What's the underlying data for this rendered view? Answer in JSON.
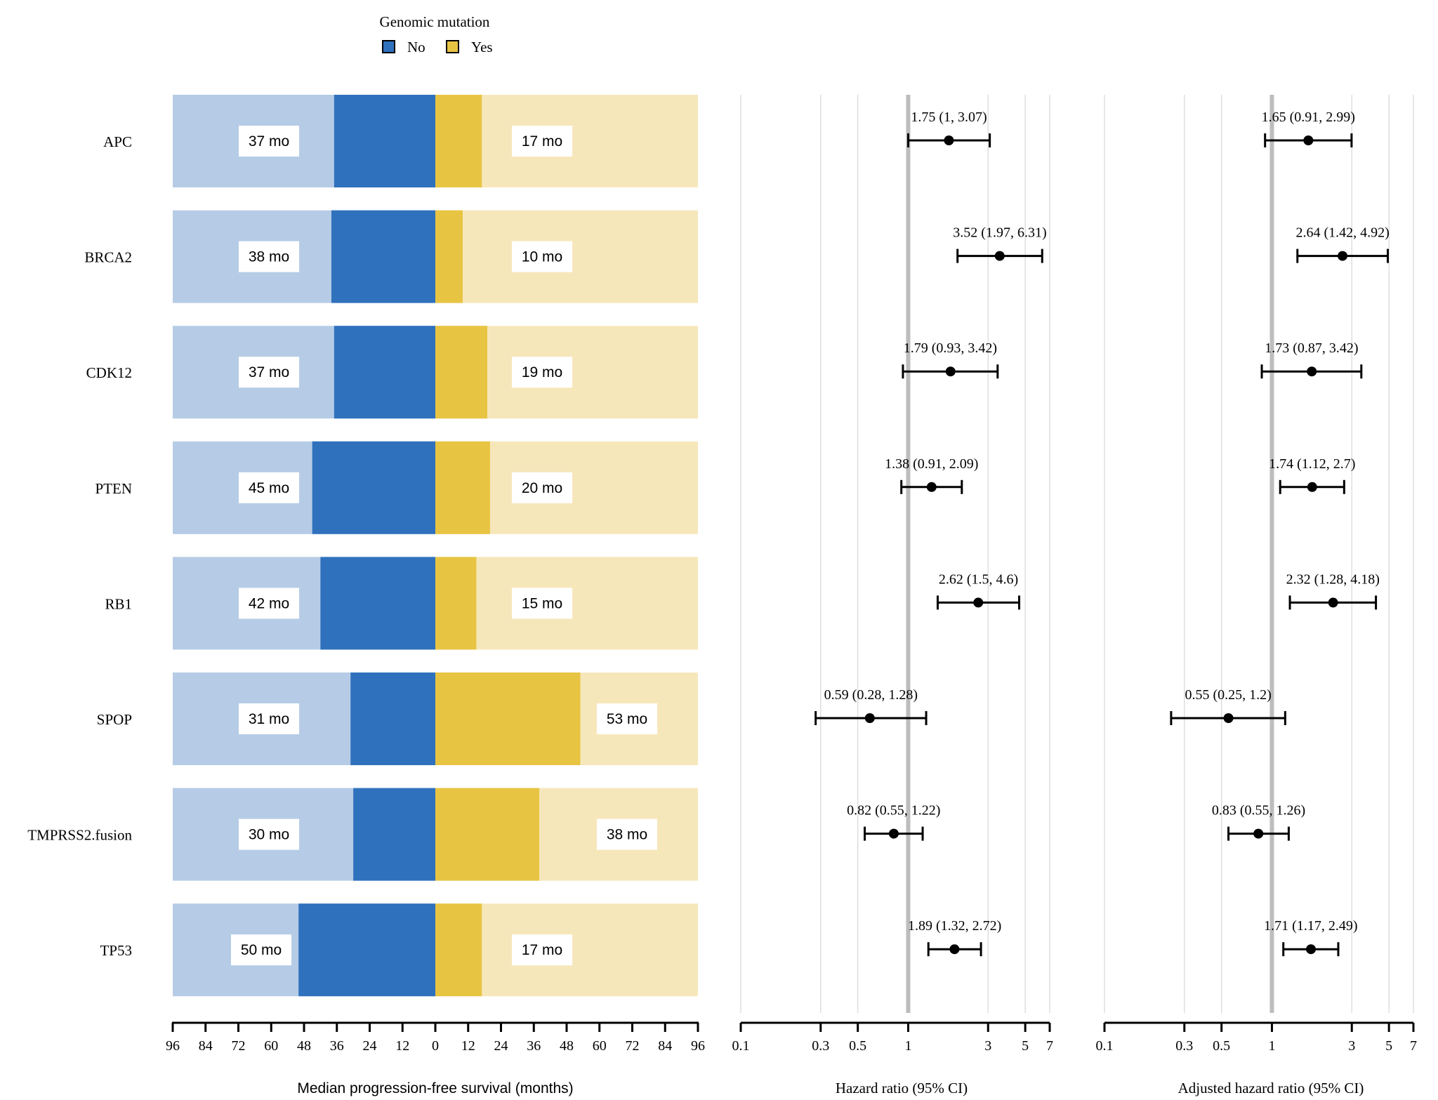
{
  "legend": {
    "title": "Genomic mutation",
    "items": [
      {
        "label": "No",
        "color": "#3071bd"
      },
      {
        "label": "Yes",
        "color": "#e8c443"
      }
    ]
  },
  "colors": {
    "no_dark": "#3071bd",
    "no_light": "#b6cce6",
    "yes_dark": "#e8c443",
    "yes_light": "#f6e7bb",
    "reference_line": "#bdbdbd",
    "grid": "#dadada",
    "point": "#000000"
  },
  "chart_data": [
    {
      "type": "bar",
      "title": "",
      "xlabel": "Median progression-free survival (months)",
      "ylabel": "",
      "xlim": [
        -96,
        96
      ],
      "ticks": [
        96,
        84,
        72,
        60,
        48,
        36,
        24,
        12,
        0,
        12,
        24,
        36,
        48,
        60,
        72,
        84,
        96
      ],
      "categories": [
        "APC",
        "BRCA2",
        "CDK12",
        "PTEN",
        "RB1",
        "SPOP",
        "TMPRSS2.fusion",
        "TP53"
      ],
      "series": [
        {
          "name": "No",
          "values": [
            37,
            38,
            37,
            45,
            42,
            31,
            30,
            50
          ],
          "labels": [
            "37 mo",
            "38 mo",
            "37 mo",
            "45 mo",
            "42 mo",
            "31 mo",
            "30 mo",
            "50 mo"
          ]
        },
        {
          "name": "Yes",
          "values": [
            17,
            10,
            19,
            20,
            15,
            53,
            38,
            17
          ],
          "labels": [
            "17 mo",
            "10 mo",
            "19 mo",
            "20 mo",
            "15 mo",
            "53 mo",
            "38 mo",
            "17 mo"
          ]
        }
      ]
    },
    {
      "type": "scatter",
      "title": "",
      "xlabel": "Hazard ratio (95% CI)",
      "ylabel": "",
      "scale": "log",
      "xlim": [
        0.1,
        7
      ],
      "ticks": [
        "0.1",
        "0.3",
        "0.5",
        "1",
        "3",
        "5",
        "7"
      ],
      "reference": 1,
      "categories": [
        "APC",
        "BRCA2",
        "CDK12",
        "PTEN",
        "RB1",
        "SPOP",
        "TMPRSS2.fusion",
        "TP53"
      ],
      "estimates": [
        1.75,
        3.52,
        1.79,
        1.38,
        2.62,
        0.59,
        0.82,
        1.89
      ],
      "lower": [
        1,
        1.97,
        0.93,
        0.91,
        1.5,
        0.28,
        0.55,
        1.32
      ],
      "upper": [
        3.07,
        6.31,
        3.42,
        2.09,
        4.6,
        1.28,
        1.22,
        2.72
      ],
      "labels": [
        "1.75 (1, 3.07)",
        "3.52 (1.97, 6.31)",
        "1.79 (0.93, 3.42)",
        "1.38 (0.91, 2.09)",
        "2.62 (1.5, 4.6)",
        "0.59 (0.28, 1.28)",
        "0.82 (0.55, 1.22)",
        "1.89 (1.32, 2.72)"
      ]
    },
    {
      "type": "scatter",
      "title": "",
      "xlabel": "Adjusted hazard ratio (95% CI)",
      "ylabel": "",
      "scale": "log",
      "xlim": [
        0.1,
        7
      ],
      "ticks": [
        "0.1",
        "0.3",
        "0.5",
        "1",
        "3",
        "5",
        "7"
      ],
      "reference": 1,
      "categories": [
        "APC",
        "BRCA2",
        "CDK12",
        "PTEN",
        "RB1",
        "SPOP",
        "TMPRSS2.fusion",
        "TP53"
      ],
      "estimates": [
        1.65,
        2.64,
        1.73,
        1.74,
        2.32,
        0.55,
        0.83,
        1.71
      ],
      "lower": [
        0.91,
        1.42,
        0.87,
        1.12,
        1.28,
        0.25,
        0.55,
        1.17
      ],
      "upper": [
        2.99,
        4.92,
        3.42,
        2.7,
        4.18,
        1.2,
        1.26,
        2.49
      ],
      "labels": [
        "1.65 (0.91, 2.99)",
        "2.64 (1.42, 4.92)",
        "1.73 (0.87, 3.42)",
        "1.74 (1.12, 2.7)",
        "2.32 (1.28, 4.18)",
        "0.55 (0.25, 1.2)",
        "0.83 (0.55, 1.26)",
        "1.71 (1.17, 2.49)"
      ]
    }
  ]
}
